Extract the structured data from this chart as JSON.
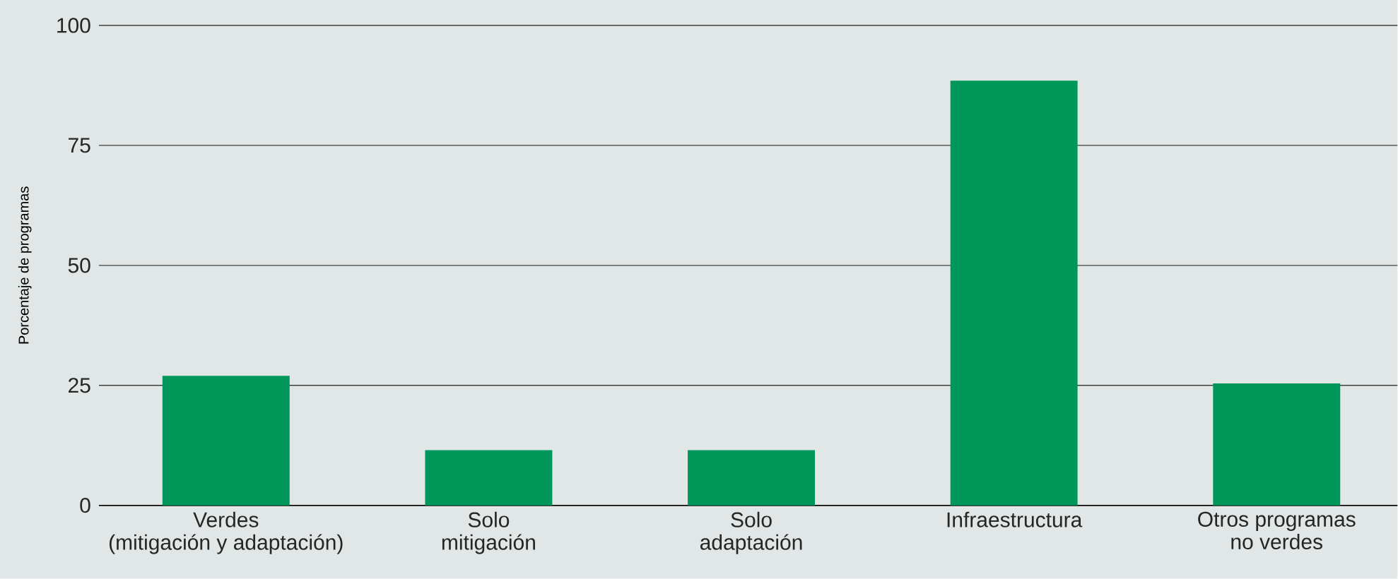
{
  "chart_data": {
    "type": "bar",
    "ylabel": "Porcentaje de programas",
    "categories": [
      "Verdes\n(mitigación y adaptación)",
      "Solo\nmitigación",
      "Solo\nadaptación",
      "Infraestructura",
      "Otros programas\nno verdes"
    ],
    "values": [
      27,
      11.5,
      11.5,
      88.5,
      25.4
    ],
    "color": "#00975a",
    "ylim": [
      0,
      100
    ],
    "yticks": [
      0,
      25,
      50,
      75,
      100
    ],
    "grid": "y"
  }
}
